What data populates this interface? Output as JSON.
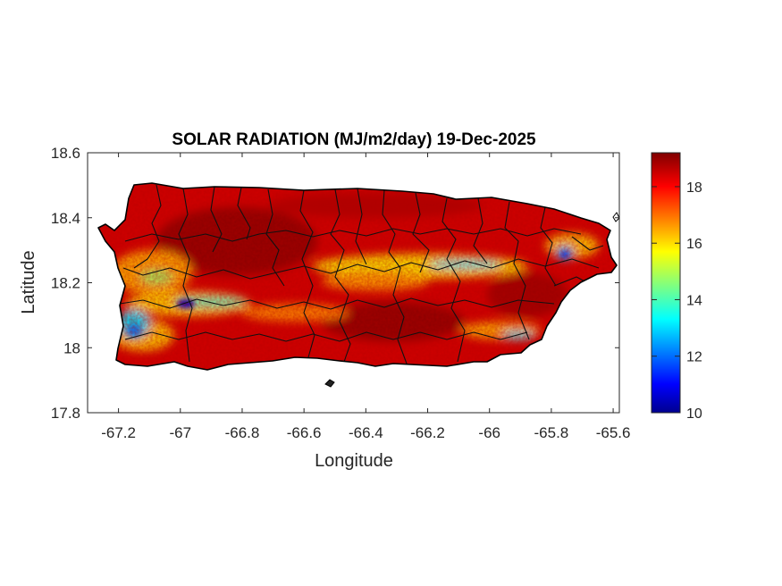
{
  "chart_data": {
    "type": "heatmap",
    "title": "SOLAR RADIATION (MJ/m2/day) 19-Dec-2025",
    "xlabel": "Longitude",
    "ylabel": "Latitude",
    "xlim": [
      -67.3,
      -65.58
    ],
    "ylim": [
      17.8,
      18.6
    ],
    "x_ticks": [
      -67.2,
      -67,
      -66.8,
      -66.6,
      -66.4,
      -66.2,
      -66,
      -65.8,
      -65.6
    ],
    "x_tick_labels": [
      "-67.2",
      "-67",
      "-66.8",
      "-66.6",
      "-66.4",
      "-66.2",
      "-66",
      "-65.8",
      "-65.6"
    ],
    "y_ticks": [
      17.8,
      18,
      18.2,
      18.4,
      18.6
    ],
    "y_tick_labels": [
      "17.8",
      "18",
      "18.2",
      "18.4",
      "18.6"
    ],
    "colorbar": {
      "colormap": "jet",
      "range": [
        10,
        19.2
      ],
      "ticks": [
        10,
        12,
        14,
        16,
        18
      ],
      "tick_labels": [
        "10",
        "12",
        "14",
        "16",
        "18"
      ]
    },
    "grid": false,
    "region": "Puerto Rico",
    "summary_values": {
      "typical": 18.5,
      "central_band_min": 14.5,
      "southwest_valley_min": 11.0,
      "east_min": 12.5
    },
    "colors": {
      "outline": "#000000",
      "high": "#8b0000",
      "mid": "#ffff00",
      "low": "#00008f"
    }
  }
}
